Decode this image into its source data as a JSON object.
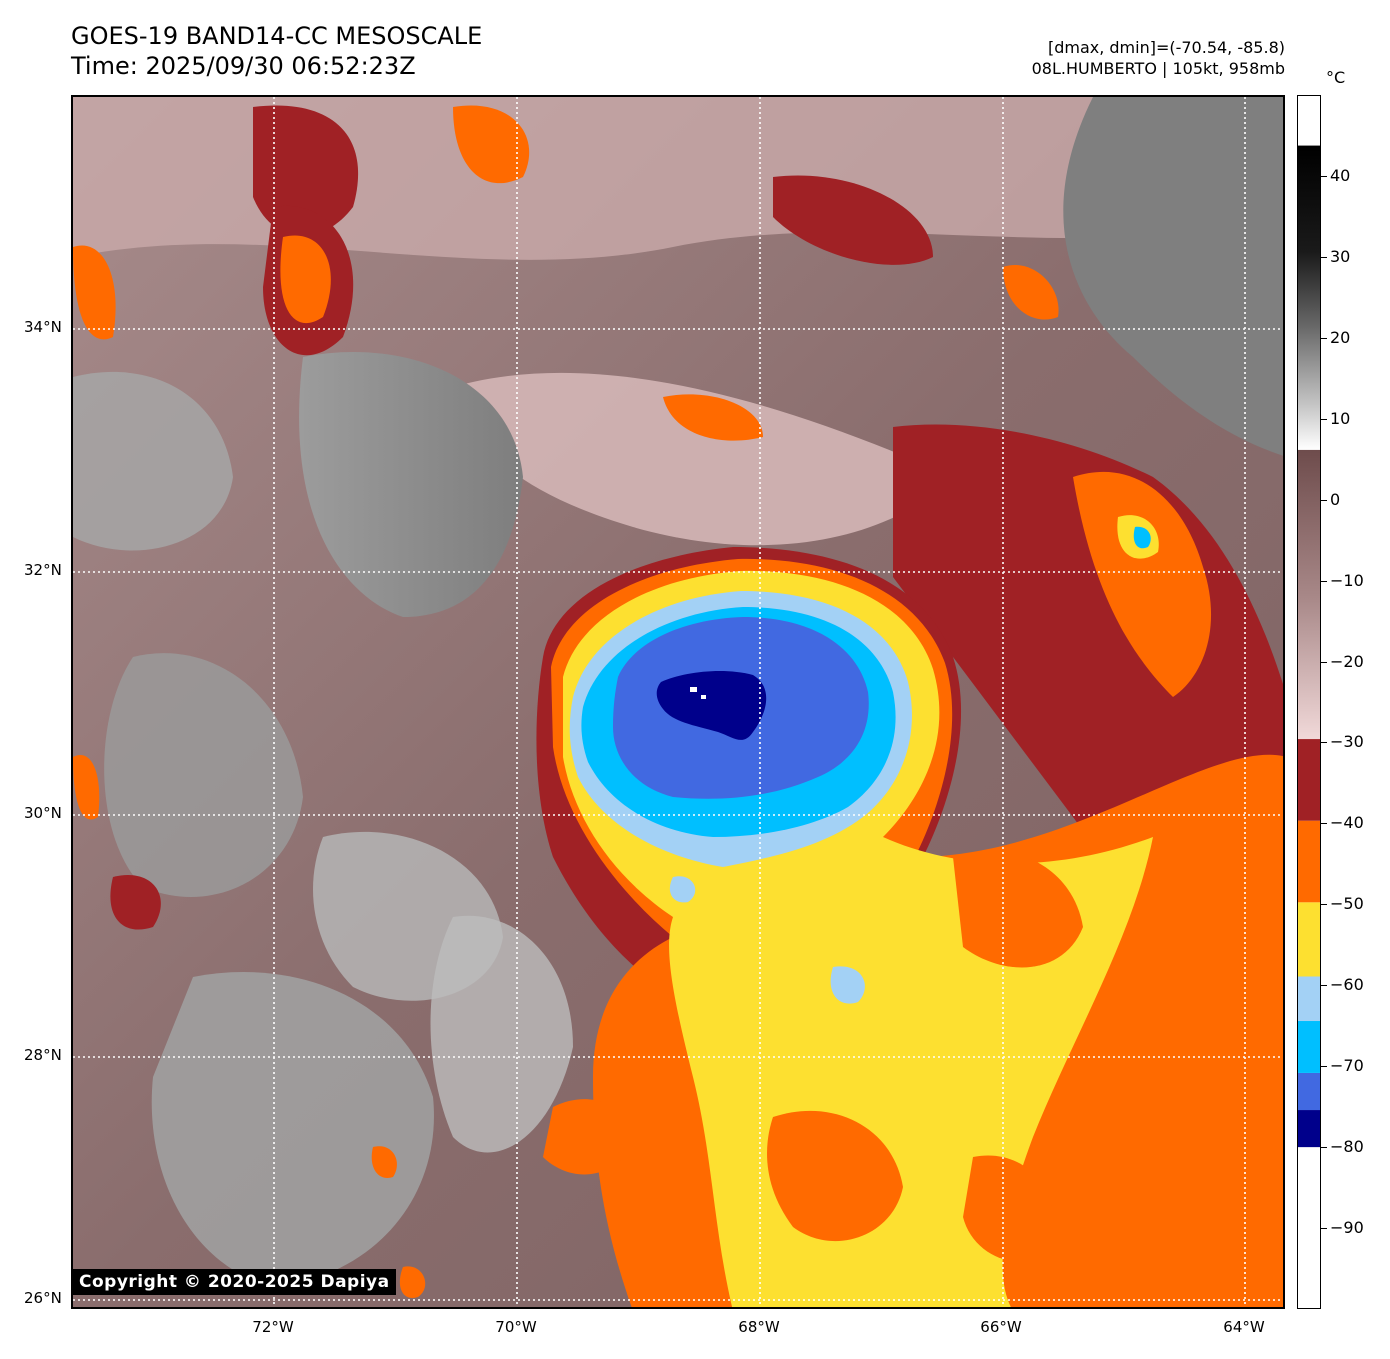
{
  "header": {
    "title_line1": "GOES-19 BAND14-CC MESOSCALE",
    "title_line2": "Time: 2025/09/30 06:52:23Z",
    "stats_line": "[dmax, dmin]=(-70.54, -85.8)",
    "storm_line": "08L.HUMBERTO | 105kt, 958mb"
  },
  "map": {
    "copyright": "Copyright © 2020-2025 Dapiya",
    "lat_labels": [
      "34°N",
      "32°N",
      "30°N",
      "28°N",
      "26°N"
    ],
    "lon_labels": [
      "72°W",
      "70°W",
      "68°W",
      "66°W",
      "64°W"
    ]
  },
  "colorbar": {
    "unit": "°C",
    "tick_labels": [
      "40",
      "30",
      "20",
      "10",
      "0",
      "−10",
      "−20",
      "−30",
      "−40",
      "−50",
      "−60",
      "−70",
      "−80",
      "−90"
    ],
    "range": [
      -100,
      50
    ],
    "segments": [
      {
        "from": -100,
        "to": -85,
        "color": "#ffffff"
      },
      {
        "from": -85,
        "to": -80,
        "color": "#00008b"
      },
      {
        "from": -80,
        "to": -75,
        "color": "#4169e1"
      },
      {
        "from": -75,
        "to": -68,
        "color": "#00bfff"
      },
      {
        "from": -68,
        "to": -62,
        "color": "#a3d1f5"
      },
      {
        "from": -62,
        "to": -52,
        "color": "#fde030"
      },
      {
        "from": -52,
        "to": -41,
        "color": "#ff6a00"
      },
      {
        "from": -41,
        "to": -30,
        "color": "#a02125"
      }
    ]
  },
  "colors": {
    "cold_top_dark": "#00008b",
    "cold_top_blue": "#4169e1",
    "cold_top_cyan": "#00bfff",
    "cold_top_light": "#a3d1f5",
    "yellow": "#fde030",
    "orange": "#ff6a00",
    "dark_red": "#a02125",
    "warm_brown": "#8a7070"
  }
}
